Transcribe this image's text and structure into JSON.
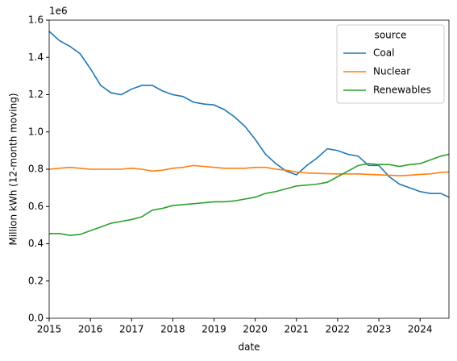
{
  "chart_data": {
    "type": "line",
    "xlabel": "date",
    "ylabel": "Million kWh (12-month moving)",
    "y_offset_label": "1e6",
    "legend_title": "source",
    "legend": "upper right",
    "x": [
      2015,
      2015.25,
      2015.5,
      2015.75,
      2016,
      2016.25,
      2016.5,
      2016.75,
      2017,
      2017.25,
      2017.5,
      2017.75,
      2018,
      2018.25,
      2018.5,
      2018.75,
      2019,
      2019.25,
      2019.5,
      2019.75,
      2020,
      2020.25,
      2020.5,
      2020.75,
      2021,
      2021.25,
      2021.5,
      2021.75,
      2022,
      2022.25,
      2022.5,
      2022.75,
      2023,
      2023.25,
      2023.5,
      2023.75,
      2024,
      2024.25,
      2024.5,
      2024.7
    ],
    "series": [
      {
        "name": "Coal",
        "color": "#1f77b4",
        "values": [
          1.54,
          1.49,
          1.46,
          1.42,
          1.34,
          1.25,
          1.21,
          1.2,
          1.23,
          1.25,
          1.25,
          1.22,
          1.2,
          1.19,
          1.16,
          1.15,
          1.145,
          1.12,
          1.08,
          1.03,
          0.96,
          0.88,
          0.83,
          0.79,
          0.77,
          0.82,
          0.86,
          0.91,
          0.9,
          0.88,
          0.87,
          0.82,
          0.82,
          0.76,
          0.72,
          0.7,
          0.68,
          0.67,
          0.67,
          0.65
        ]
      },
      {
        "name": "Nuclear",
        "color": "#ff7f0e",
        "values": [
          0.8,
          0.805,
          0.81,
          0.805,
          0.8,
          0.8,
          0.8,
          0.8,
          0.805,
          0.8,
          0.79,
          0.795,
          0.805,
          0.81,
          0.82,
          0.815,
          0.81,
          0.805,
          0.805,
          0.805,
          0.81,
          0.81,
          0.8,
          0.795,
          0.785,
          0.78,
          0.778,
          0.776,
          0.775,
          0.775,
          0.775,
          0.772,
          0.77,
          0.768,
          0.765,
          0.768,
          0.772,
          0.775,
          0.783,
          0.785
        ]
      },
      {
        "name": "Renewables",
        "color": "#2ca02c",
        "values": [
          0.455,
          0.455,
          0.445,
          0.45,
          0.47,
          0.49,
          0.51,
          0.52,
          0.53,
          0.545,
          0.58,
          0.59,
          0.605,
          0.61,
          0.615,
          0.62,
          0.625,
          0.625,
          0.63,
          0.64,
          0.65,
          0.67,
          0.68,
          0.695,
          0.71,
          0.715,
          0.72,
          0.73,
          0.76,
          0.79,
          0.82,
          0.83,
          0.825,
          0.825,
          0.815,
          0.825,
          0.83,
          0.85,
          0.87,
          0.88
        ]
      }
    ],
    "xlim": [
      2015,
      2024.7
    ],
    "xticks": [
      2015,
      2016,
      2017,
      2018,
      2019,
      2020,
      2021,
      2022,
      2023,
      2024
    ],
    "ylim": [
      0,
      1.6
    ],
    "yticks": [
      {
        "value": 0,
        "label": "0.0"
      },
      0.2,
      0.4,
      0.6,
      0.8,
      {
        "value": 1,
        "label": "1.0"
      },
      1.2,
      1.4,
      1.6
    ]
  }
}
